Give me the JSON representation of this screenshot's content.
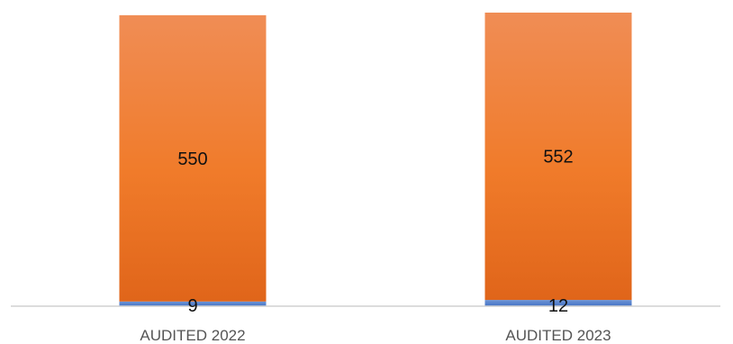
{
  "chart_data": {
    "type": "bar",
    "stacked": true,
    "categories": [
      "AUDITED 2022",
      "AUDITED 2023"
    ],
    "series": [
      {
        "values": [
          9,
          12
        ],
        "color": "#4472C4"
      },
      {
        "values": [
          550,
          552
        ],
        "color": "#ED7D31"
      }
    ],
    "ylim": [
      0,
      564
    ],
    "grid": false,
    "legend": "none"
  }
}
